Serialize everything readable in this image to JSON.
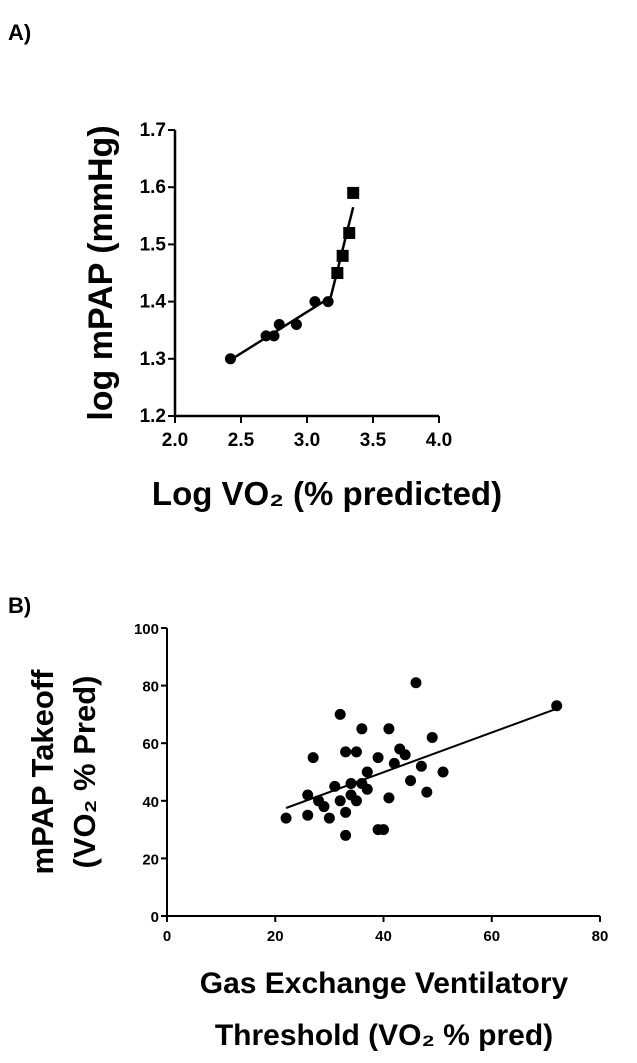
{
  "chart_data": [
    {
      "panel_label": "A)",
      "type": "scatter",
      "xlabel": "Log VO₂ (% predicted)",
      "ylabel": "log mPAP (mmHg)",
      "xlim": [
        2.0,
        4.0
      ],
      "ylim": [
        1.2,
        1.7
      ],
      "xticks": [
        "2.0",
        "2.5",
        "3.0",
        "3.5",
        "4.0"
      ],
      "yticks": [
        "1.2",
        "1.3",
        "1.4",
        "1.5",
        "1.6",
        "1.7"
      ],
      "series": [
        {
          "marker": "circle",
          "points": [
            [
              2.42,
              1.3
            ],
            [
              2.69,
              1.34
            ],
            [
              2.75,
              1.34
            ],
            [
              2.79,
              1.36
            ],
            [
              2.92,
              1.36
            ],
            [
              3.06,
              1.4
            ],
            [
              3.16,
              1.4
            ]
          ]
        },
        {
          "marker": "square",
          "points": [
            [
              3.23,
              1.45
            ],
            [
              3.27,
              1.48
            ],
            [
              3.32,
              1.52
            ],
            [
              3.35,
              1.59
            ]
          ]
        }
      ],
      "fit_lines": [
        [
          [
            2.42,
            1.298
          ],
          [
            3.18,
            1.408
          ]
        ],
        [
          [
            3.18,
            1.408
          ],
          [
            3.35,
            1.565
          ]
        ]
      ],
      "grid": false
    },
    {
      "panel_label": "B)",
      "type": "scatter",
      "xlabel": "Gas Exchange Ventilatory Threshold (VO₂ % pred)",
      "xlabel_lines": [
        "Gas Exchange Ventilatory",
        "Threshold (VO₂ % pred)"
      ],
      "ylabel": "mPAP Takeoff (VO₂ % Pred)",
      "ylabel_lines": [
        "mPAP Takeoff",
        "(VO₂ % Pred)"
      ],
      "xlim": [
        0,
        80
      ],
      "ylim": [
        0,
        100
      ],
      "xticks": [
        "0",
        "20",
        "40",
        "60",
        "80"
      ],
      "yticks": [
        "0",
        "20",
        "40",
        "60",
        "80",
        "100"
      ],
      "series": [
        {
          "marker": "circle",
          "points": [
            [
              22,
              34
            ],
            [
              26,
              35
            ],
            [
              26,
              42
            ],
            [
              27,
              55
            ],
            [
              28,
              40
            ],
            [
              29,
              38
            ],
            [
              30,
              34
            ],
            [
              31,
              45
            ],
            [
              32,
              70
            ],
            [
              32,
              40
            ],
            [
              33,
              28
            ],
            [
              33,
              36
            ],
            [
              33,
              57
            ],
            [
              34,
              42
            ],
            [
              34,
              46
            ],
            [
              35,
              40
            ],
            [
              35,
              57
            ],
            [
              36,
              46
            ],
            [
              36,
              65
            ],
            [
              37,
              44
            ],
            [
              37,
              50
            ],
            [
              39,
              30
            ],
            [
              39,
              55
            ],
            [
              40,
              30
            ],
            [
              41,
              41
            ],
            [
              41,
              65
            ],
            [
              42,
              53
            ],
            [
              43,
              58
            ],
            [
              44,
              56
            ],
            [
              45,
              47
            ],
            [
              46,
              81
            ],
            [
              47,
              52
            ],
            [
              48,
              43
            ],
            [
              49,
              62
            ],
            [
              51,
              50
            ],
            [
              72,
              73
            ]
          ]
        }
      ],
      "fit_lines": [
        [
          [
            22,
            37.5
          ],
          [
            72,
            72.0
          ]
        ]
      ],
      "grid": false
    }
  ]
}
